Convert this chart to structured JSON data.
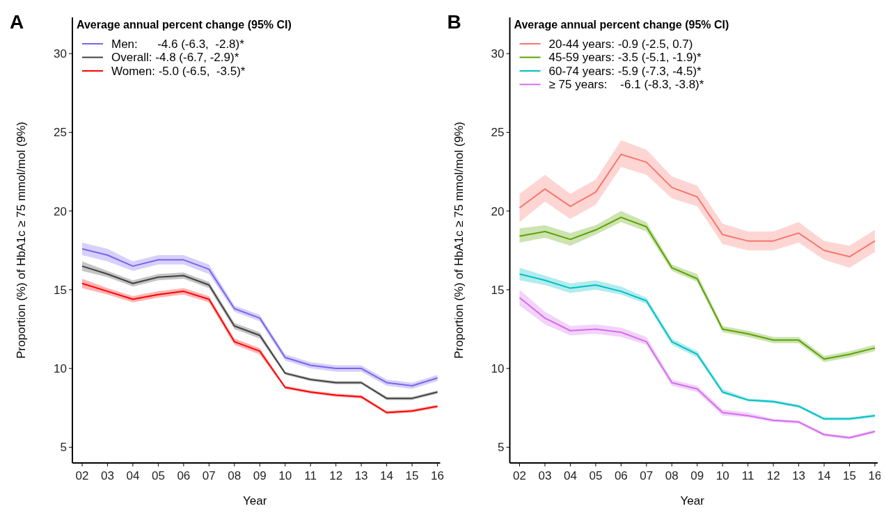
{
  "chart_data": [
    {
      "type": "line",
      "title": "A",
      "xlabel": "Year",
      "ylabel": "Proportion (%) of HbA1c ≥ 75 mmol/mol (9%)",
      "legend_title": "Average annual percent change (95% CI)",
      "legend": "top left",
      "grid": false,
      "marker": "none",
      "line_style": "solid",
      "categories": [
        "02",
        "03",
        "04",
        "05",
        "06",
        "07",
        "08",
        "09",
        "10",
        "11",
        "12",
        "13",
        "14",
        "15",
        "16"
      ],
      "ylim": [
        4,
        32.3
      ],
      "yticks": [
        5,
        10,
        15,
        20,
        25,
        30
      ],
      "series": [
        {
          "name": "Men:      -4.6 (-6.3,  -2.8)*",
          "color": "#7b63ee",
          "values": [
            17.6,
            17.2,
            16.5,
            16.9,
            16.9,
            16.3,
            13.8,
            13.2,
            10.7,
            10.2,
            10.0,
            10.0,
            9.1,
            8.9,
            9.4
          ],
          "lower": [
            17.2,
            16.8,
            16.2,
            16.6,
            16.6,
            16.0,
            13.6,
            13.0,
            10.5,
            10.0,
            9.8,
            9.8,
            8.9,
            8.7,
            9.2
          ],
          "upper": [
            18.0,
            17.6,
            16.8,
            17.2,
            17.2,
            16.6,
            14.0,
            13.4,
            10.9,
            10.4,
            10.2,
            10.2,
            9.3,
            9.1,
            9.6
          ]
        },
        {
          "name": "Overall: -4.8 (-6.7, -2.9)*",
          "color": "#404040",
          "values": [
            16.5,
            16.0,
            15.4,
            15.8,
            15.9,
            15.3,
            12.7,
            12.1,
            9.7,
            9.3,
            9.1,
            9.1,
            8.1,
            8.1,
            8.5
          ],
          "lower": [
            16.2,
            15.8,
            15.2,
            15.6,
            15.7,
            15.1,
            12.5,
            11.9,
            9.6,
            9.2,
            9.0,
            9.0,
            8.0,
            8.0,
            8.4
          ],
          "upper": [
            16.8,
            16.2,
            15.6,
            16.0,
            16.1,
            15.5,
            12.9,
            12.3,
            9.8,
            9.4,
            9.2,
            9.2,
            8.2,
            8.2,
            8.6
          ]
        },
        {
          "name": "Women: -5.0 (-6.5,  -3.5)*",
          "color": "#ff0000",
          "values": [
            15.4,
            14.9,
            14.4,
            14.7,
            14.9,
            14.4,
            11.7,
            11.1,
            8.8,
            8.5,
            8.3,
            8.2,
            7.2,
            7.3,
            7.6
          ],
          "lower": [
            15.1,
            14.7,
            14.2,
            14.5,
            14.7,
            14.2,
            11.5,
            10.9,
            8.7,
            8.4,
            8.2,
            8.1,
            7.1,
            7.2,
            7.5
          ],
          "upper": [
            15.7,
            15.1,
            14.6,
            14.9,
            15.1,
            14.6,
            11.9,
            11.3,
            8.9,
            8.6,
            8.4,
            8.3,
            7.3,
            7.4,
            7.7
          ]
        }
      ]
    },
    {
      "type": "line",
      "title": "B",
      "xlabel": "Year",
      "ylabel": "Proportion (%) of HbA1c ≥ 75 mmol/mol (9%)",
      "legend_title": "Average annual percent change (95% CI)",
      "legend": "top left",
      "grid": false,
      "marker": "none",
      "line_style": "solid",
      "categories": [
        "02",
        "03",
        "04",
        "05",
        "06",
        "07",
        "08",
        "09",
        "10",
        "11",
        "12",
        "13",
        "14",
        "15",
        "16"
      ],
      "ylim": [
        4,
        32.3
      ],
      "yticks": [
        5,
        10,
        15,
        20,
        25,
        30
      ],
      "series": [
        {
          "name": "20-44 years: -0.9 (-2.5, 0.7)",
          "color": "#f8766d",
          "values": [
            20.2,
            21.4,
            20.3,
            21.2,
            23.6,
            23.1,
            21.5,
            20.9,
            18.5,
            18.1,
            18.1,
            18.6,
            17.5,
            17.1,
            18.1
          ],
          "lower": [
            19.3,
            20.6,
            19.5,
            20.4,
            22.8,
            22.3,
            20.8,
            20.3,
            17.9,
            17.5,
            17.5,
            18.0,
            16.9,
            16.4,
            17.4
          ],
          "upper": [
            21.1,
            22.3,
            21.1,
            22.0,
            24.5,
            23.9,
            22.2,
            21.6,
            19.2,
            18.7,
            18.7,
            19.3,
            18.1,
            17.8,
            18.8
          ]
        },
        {
          "name": "45-59 years: -3.5 (-5.1, -1.9)*",
          "color": "#5aa300",
          "values": [
            18.4,
            18.7,
            18.2,
            18.8,
            19.6,
            19.0,
            16.4,
            15.7,
            12.5,
            12.2,
            11.8,
            11.8,
            10.6,
            10.9,
            11.3
          ],
          "lower": [
            18.0,
            18.3,
            17.8,
            18.5,
            19.3,
            18.7,
            16.2,
            15.5,
            12.3,
            12.0,
            11.6,
            11.6,
            10.4,
            10.7,
            11.1
          ],
          "upper": [
            18.9,
            19.1,
            18.6,
            19.1,
            20.0,
            19.3,
            16.6,
            16.0,
            12.7,
            12.4,
            12.0,
            12.0,
            10.8,
            11.1,
            11.5
          ]
        },
        {
          "name": "60-74 years: -5.9 (-7.3, -4.5)*",
          "color": "#00bfc4",
          "values": [
            16.0,
            15.6,
            15.1,
            15.3,
            14.9,
            14.3,
            11.7,
            10.9,
            8.5,
            8.0,
            7.9,
            7.6,
            6.8,
            6.8,
            7.0
          ],
          "lower": [
            15.6,
            15.3,
            14.8,
            15.0,
            14.7,
            14.1,
            11.5,
            10.7,
            8.4,
            7.9,
            7.8,
            7.5,
            6.7,
            6.7,
            6.9
          ],
          "upper": [
            16.4,
            15.9,
            15.4,
            15.6,
            15.2,
            14.5,
            11.9,
            11.1,
            8.7,
            8.1,
            8.0,
            7.7,
            6.9,
            6.9,
            7.1
          ]
        },
        {
          "name": "≥ 75 years:    -6.1 (-8.3, -3.8)*",
          "color": "#d46cf0",
          "values": [
            14.5,
            13.2,
            12.4,
            12.5,
            12.3,
            11.7,
            9.1,
            8.7,
            7.2,
            7.0,
            6.7,
            6.6,
            5.8,
            5.6,
            6.0
          ],
          "lower": [
            14.0,
            12.8,
            12.1,
            12.2,
            12.0,
            11.5,
            8.9,
            8.5,
            7.0,
            6.9,
            6.6,
            6.5,
            5.7,
            5.5,
            5.9
          ],
          "upper": [
            15.0,
            13.6,
            12.7,
            12.8,
            12.6,
            12.0,
            9.3,
            8.9,
            7.4,
            7.2,
            6.8,
            6.7,
            5.9,
            5.7,
            6.1
          ]
        }
      ]
    }
  ]
}
